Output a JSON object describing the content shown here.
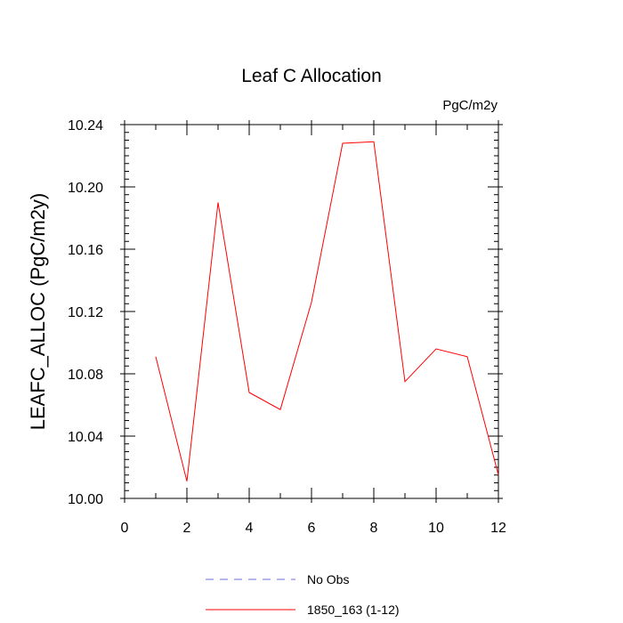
{
  "chart_data": {
    "type": "line",
    "title": "Leaf C Allocation",
    "units_label": "PgC/m2y",
    "xlabel": "",
    "ylabel": "LEAFC_ALLOC  (PgC/m2y)",
    "xlim": [
      0,
      12
    ],
    "ylim": [
      10.0,
      10.24
    ],
    "x_ticks": [
      0,
      2,
      4,
      6,
      8,
      10,
      12
    ],
    "x_tick_labels": [
      "0",
      "2",
      "4",
      "6",
      "8",
      "10",
      "12"
    ],
    "y_ticks": [
      10.0,
      10.04,
      10.08,
      10.12,
      10.16,
      10.2,
      10.24
    ],
    "y_tick_labels": [
      "10.00",
      "10.04",
      "10.08",
      "10.12",
      "10.16",
      "10.20",
      "10.24"
    ],
    "grid": false,
    "series": [
      {
        "name": "1850_163 (1-12)",
        "color": "#ff0000",
        "style": "solid",
        "x": [
          1,
          2,
          3,
          4,
          5,
          6,
          7,
          8,
          9,
          10,
          11,
          12
        ],
        "values": [
          10.091,
          10.011,
          10.19,
          10.068,
          10.057,
          10.126,
          10.228,
          10.229,
          10.075,
          10.096,
          10.091,
          10.015
        ]
      }
    ],
    "legend": [
      {
        "label": "No Obs",
        "color": "#6f6fe0",
        "style": "dashed"
      },
      {
        "label": "1850_163 (1-12)",
        "color": "#ff0000",
        "style": "solid"
      }
    ]
  }
}
